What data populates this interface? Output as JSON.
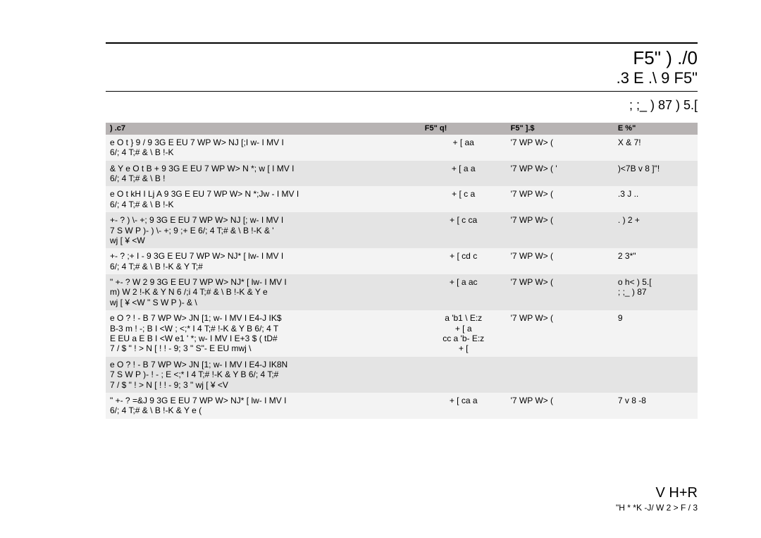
{
  "header": {
    "title_line1": "F5\"   )   ./0",
    "title_line2": ".3   E   .\\ 9 F5\"",
    "title_line3": "; ;_  ) 87    ) 5.["
  },
  "table": {
    "columns": [
      ") .c7",
      "F5\"   q!",
      "F5\"  ].$",
      "E %\""
    ],
    "rows": [
      {
        "name": "e O  t     }  9  /  9 3G E  EU  7  WP W>      NJ  [;I w- I  MV I\n6/;    4   T;#   &  \\  B   !-K",
        "date": "+ [ aa",
        "type": "'7  WP W>     (",
        "ref": "X  &  7!"
      },
      {
        "name": "&  Y e O  t    B +  9 3G E  EU  7  WP W>    N *;  w [ I  MV I\n6/;    4   T;#   &  \\  B   !",
        "date": "+ [ a  a",
        "type": "'7  WP W>     (    '",
        "ref": ")<7B  v 8  ]\"!"
      },
      {
        "name": "e O  t    kH I  Lj  A 9 3G E  EU  7  WP W>     N *;Jw - I  MV I\n6/;    4   T;#   &  \\  B   !-K",
        "date": "+ [ c  a",
        "type": "'7  WP W>     (",
        "ref": ".3   J   .."
      },
      {
        "name": "+- ? ) \\-    +; 9 3G E  EU  7  WP W>      NJ  [; w- I  MV I\n7  S W P  )-  ) \\-     +; 9 ;+  E  6/;    4   T;#   &  \\  B   !-K   &  '\nwj [   ¥  <W",
        "date": "+ [ c  ca",
        "type": "'7  WP W>     (",
        "ref": ".    ) 2 +"
      },
      {
        "name": "+- ?  ;+   I  -   9 3G E  EU  7  WP W>      NJ* [  lw- I  MV I\n6/;    4   T;#   &  \\  B   !-K   &  Y T;#",
        "date": "+ [ cd c",
        "type": "'7  WP W>     (",
        "ref": "2   3*\""
      },
      {
        "name": "\"    +- ?   W 2  9 3G E  EU  7  WP W>      NJ* [  lw- I  MV I\nm)       W 2  !-K   &  Y   N 6 /;i   4   T;#   &  \\  B   !-K   &  Y e\nwj [   ¥  <W     \" S W P  )-   &  \\",
        "date": "+ [ a  ac",
        "type": "'7  WP W>     (",
        "ref": "o h<  ) 5.[\n; ;_  ) 87"
      },
      {
        "name": "e O  ?  ! -   B    7  WP W>       JN [1;  w- I  MV I    E4-J   IK$\nB-3  m !  -;  B  I  <W ;  <;* I  4   T;# !-K   &  Y B   6/;    4   T\nE  EU a E   B  I   <W  e1    '  *; w- I  MV I   E+3  $  ( tD#\n7 /  $  \" !    >  N  [ !   ! -  9; 3 \" S\"-  E  EU mwj \\",
        "date": "a 'b1 \\  E:z\n+ [ a\ncc  a 'b-  E:z\n+ [",
        "type": "'7  WP W>     (",
        "ref": "9"
      },
      {
        "name": "e O  ?  ! -   B    7  WP W>       JN [1;  w- I  MV I    E4-J   IK8N\n7  S W P  )-  ! -   ;  E  <;* I  4   T;# !-K   &  Y B   6/;    4   T;#\n7 /  $  \" !    >  N  [ !   ! -  9; 3 \" wj [   ¥  <V",
        "date": "",
        "type": "",
        "ref": ""
      },
      {
        "name": "\"      +- ?  =&J   9 3G E  EU  7  WP W>      NJ* [  lw- I  MV I\n6/;    4   T;#   &  \\  B   !-K   &  Y e (",
        "date": "+ [ ca a",
        "type": "'7  WP W>     (",
        "ref": "7     v 8    -8"
      }
    ]
  },
  "footer": {
    "line1": "V  H+R",
    "line2": "\"H  * *K   -J/     W 2   > F  / 3"
  }
}
